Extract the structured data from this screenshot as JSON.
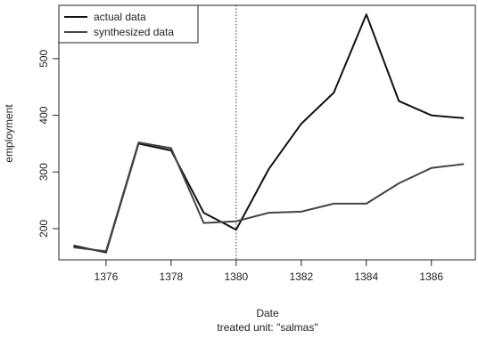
{
  "chart_data": {
    "type": "line",
    "x": [
      1375,
      1376,
      1377,
      1378,
      1379,
      1380,
      1381,
      1382,
      1383,
      1384,
      1385,
      1386,
      1387
    ],
    "series": [
      {
        "name": "actual data",
        "values": [
          170,
          158,
          350,
          338,
          228,
          198,
          305,
          385,
          440,
          578,
          425,
          400,
          395
        ],
        "color": "#111111",
        "width": 2
      },
      {
        "name": "synthesized data",
        "values": [
          167,
          160,
          352,
          342,
          210,
          213,
          228,
          230,
          244,
          244,
          280,
          307,
          314
        ],
        "color": "#444444",
        "width": 2
      }
    ],
    "xlabel": "Date",
    "ylabel": "employment",
    "subtitle": "treated unit:  \"salmas\"",
    "xticks": [
      1376,
      1378,
      1380,
      1382,
      1384,
      1386
    ],
    "yticks": [
      200,
      300,
      400,
      500
    ],
    "xlim": [
      1374.55,
      1387.35
    ],
    "ylim": [
      145,
      594
    ],
    "vline": 1380,
    "legend": "top-left",
    "grid": false
  }
}
